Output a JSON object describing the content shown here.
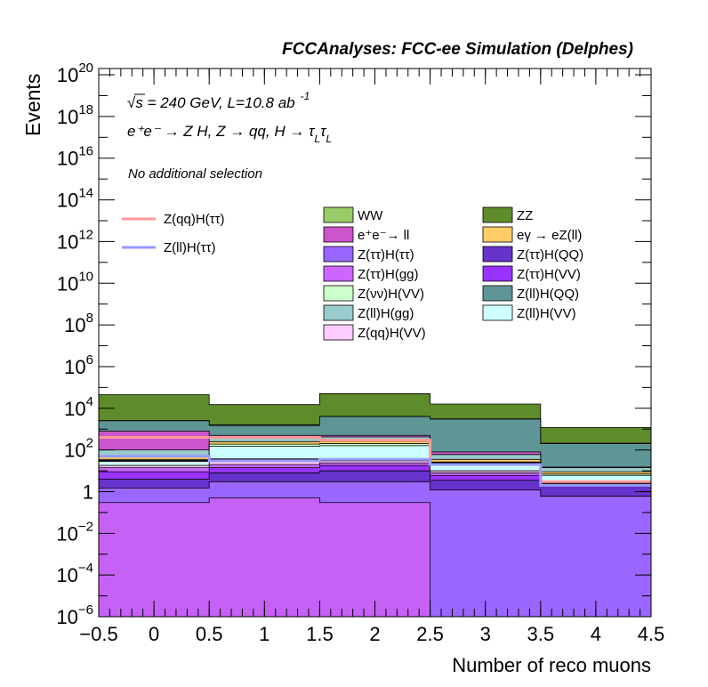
{
  "chart_data": {
    "type": "area",
    "title": "FCCAnalyses: FCC-ee Simulation (Delphes)",
    "xlabel": "Number of reco muons",
    "ylabel": "Events",
    "yscale": "log",
    "xlim": [
      -0.5,
      4.5
    ],
    "ylim": [
      1e-06,
      2e+20
    ],
    "x_ticks": [
      "−0.5",
      "0",
      "0.5",
      "1",
      "1.5",
      "2",
      "2.5",
      "3",
      "3.5",
      "4",
      "4.5"
    ],
    "x_tick_values": [
      -0.5,
      0,
      0.5,
      1,
      1.5,
      2,
      2.5,
      3,
      3.5,
      4,
      4.5
    ],
    "y_ticks": [
      {
        "value": 1e-06,
        "base": "10",
        "exp": "−6"
      },
      {
        "value": 0.0001,
        "base": "10",
        "exp": "−4"
      },
      {
        "value": 0.01,
        "base": "10",
        "exp": "−2"
      },
      {
        "value": 1,
        "base": "1",
        "exp": ""
      },
      {
        "value": 100.0,
        "base": "10",
        "exp": "2"
      },
      {
        "value": 10000.0,
        "base": "10",
        "exp": "4"
      },
      {
        "value": 1000000.0,
        "base": "10",
        "exp": "6"
      },
      {
        "value": 100000000.0,
        "base": "10",
        "exp": "8"
      },
      {
        "value": 10000000000.0,
        "base": "10",
        "exp": "10"
      },
      {
        "value": 1000000000000.0,
        "base": "10",
        "exp": "12"
      },
      {
        "value": 100000000000000.0,
        "base": "10",
        "exp": "14"
      },
      {
        "value": 1e+16,
        "base": "10",
        "exp": "16"
      },
      {
        "value": 1e+18,
        "base": "10",
        "exp": "18"
      },
      {
        "value": 1e+20,
        "base": "10",
        "exp": "20"
      }
    ],
    "bins": [
      0,
      1,
      2,
      3,
      4
    ],
    "stack_boundaries": [
      {
        "color": "#c661f5",
        "values": [
          0.3,
          0.5,
          0.3,
          1e-06,
          1e-06
        ]
      },
      {
        "color": "#9966ff",
        "values": [
          1.5,
          3.0,
          3.0,
          1.2,
          0.6
        ]
      },
      {
        "color": "#6633cc",
        "values": [
          4.0,
          8.0,
          10.0,
          3.5,
          1.8
        ]
      },
      {
        "color": "#9933ff",
        "values": [
          9.0,
          14.0,
          18.0,
          6.0,
          2.2
        ]
      },
      {
        "color": "#cc66ff",
        "values": [
          14.0,
          20.0,
          24.0,
          8.0,
          2.6
        ]
      },
      {
        "color": "#ffccff",
        "values": [
          18.0,
          28.0,
          30.0,
          10.0,
          3.0
        ]
      },
      {
        "color": "#ccffff",
        "values": [
          30.0,
          150.0,
          160.0,
          20.0,
          6.0
        ]
      },
      {
        "color": "#ccffcc",
        "values": [
          35.0,
          190.0,
          200.0,
          25.0,
          7.0
        ]
      },
      {
        "color": "#ffcc66",
        "values": [
          50.0,
          250.0,
          260.0,
          35.0,
          9.0
        ]
      },
      {
        "color": "#99cccc",
        "values": [
          100.0,
          400.0,
          420.0,
          60.0,
          14.0
        ]
      },
      {
        "color": "#cc55cc",
        "values": [
          800.0,
          500.0,
          500.0,
          80.0,
          15.0
        ]
      },
      {
        "color": "#5e9595",
        "values": [
          2500.0,
          1500.0,
          4000.0,
          3000.0,
          200.0
        ]
      },
      {
        "color": "#99cc66",
        "values": [
          2600.0,
          1600.0,
          4100.0,
          3100.0,
          210.0
        ]
      },
      {
        "color": "#5e8c2a",
        "values": [
          45000.0,
          15000.0,
          50000.0,
          16000.0,
          1200.0
        ]
      }
    ],
    "overlay_lines": [
      {
        "name": "Z(qq)H(ττ)",
        "color": "#ff9999",
        "values": [
          400.0,
          400.0,
          300.0,
          20.0,
          3.0
        ]
      },
      {
        "name": "Z(ll)H(ττ)",
        "color": "#9999ff",
        "values": [
          50.0,
          30.0,
          35.0,
          20.0,
          2.0
        ]
      }
    ],
    "black_line": {
      "values": [
        30.0,
        35.0,
        35.0,
        25.0,
        2.5
      ]
    },
    "legend_entries": [
      {
        "label": "WW",
        "color": "#99cc66"
      },
      {
        "label": "ZZ",
        "color": "#5e8c2a"
      },
      {
        "label": "e⁺e⁻→ ll",
        "color": "#cc55cc"
      },
      {
        "label": "eγ → eZ(ll)",
        "color": "#ffcc66"
      },
      {
        "label": "Z(ττ)H(ττ)",
        "color": "#9966ff"
      },
      {
        "label": "Z(ττ)H(QQ)",
        "color": "#6633cc"
      },
      {
        "label": "Z(ττ)H(gg)",
        "color": "#cc66ff"
      },
      {
        "label": "Z(ττ)H(VV)",
        "color": "#9933ff"
      },
      {
        "label": "Z(νν)H(VV)",
        "color": "#ccffcc"
      },
      {
        "label": "Z(ll)H(QQ)",
        "color": "#5e9595"
      },
      {
        "label": "Z(ll)H(gg)",
        "color": "#99cccc"
      },
      {
        "label": "Z(ll)H(VV)",
        "color": "#ccffff"
      },
      {
        "label": "Z(qq)H(VV)",
        "color": "#ffccff"
      }
    ],
    "annotations": {
      "energy_sqrt": "√s",
      "energy_text": " = 240 GeV, L=10.8 ab",
      "energy_exp": "-1",
      "process": "e⁺e⁻ → Z H, Z  → qq, H  → τ",
      "process_sub1": "L",
      "process_tau2": "τ",
      "process_sub2": "L",
      "selection": "No additional selection"
    }
  }
}
